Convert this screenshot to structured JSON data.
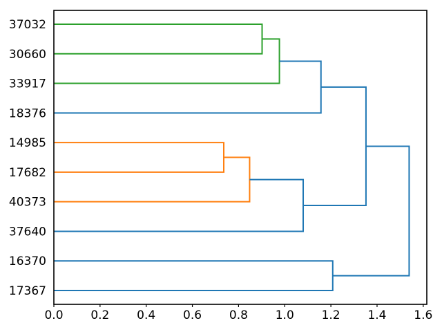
{
  "figure": {
    "background": "#ffffff"
  },
  "chart_data": {
    "type": "dendrogram",
    "orientation": "right",
    "title": "",
    "xlabel": "",
    "ylabel": "",
    "grid": false,
    "legend": null,
    "leaf_labels": [
      "37032",
      "30660",
      "33917",
      "18376",
      "14985",
      "17682",
      "40373",
      "37640",
      "16370",
      "17367"
    ],
    "x_ticks": [
      "0.0",
      "0.2",
      "0.4",
      "0.6",
      "0.8",
      "1.0",
      "1.2",
      "1.4",
      "1.6"
    ],
    "xlim": [
      0,
      1.6155
    ],
    "links": [
      {
        "children": [
          "37032",
          "30660"
        ],
        "height": 0.902,
        "color_key": "green"
      },
      {
        "children": [
          "L0",
          "33917"
        ],
        "height": 0.977,
        "color_key": "green"
      },
      {
        "children": [
          "L1",
          "18376"
        ],
        "height": 1.157,
        "color_key": "blue"
      },
      {
        "children": [
          "14985",
          "17682"
        ],
        "height": 0.736,
        "color_key": "orange"
      },
      {
        "children": [
          "L3",
          "40373"
        ],
        "height": 0.848,
        "color_key": "orange"
      },
      {
        "children": [
          "L4",
          "37640"
        ],
        "height": 1.08,
        "color_key": "blue"
      },
      {
        "children": [
          "L2",
          "L5"
        ],
        "height": 1.352,
        "color_key": "blue"
      },
      {
        "children": [
          "16370",
          "17367"
        ],
        "height": 1.208,
        "color_key": "blue"
      },
      {
        "children": [
          "L6",
          "L7"
        ],
        "height": 1.539,
        "color_key": "blue"
      }
    ],
    "colors": {
      "blue": "#1f77b4",
      "orange": "#ff7f0e",
      "green": "#2ca02c",
      "axis": "#000000",
      "text": "#000000"
    }
  }
}
